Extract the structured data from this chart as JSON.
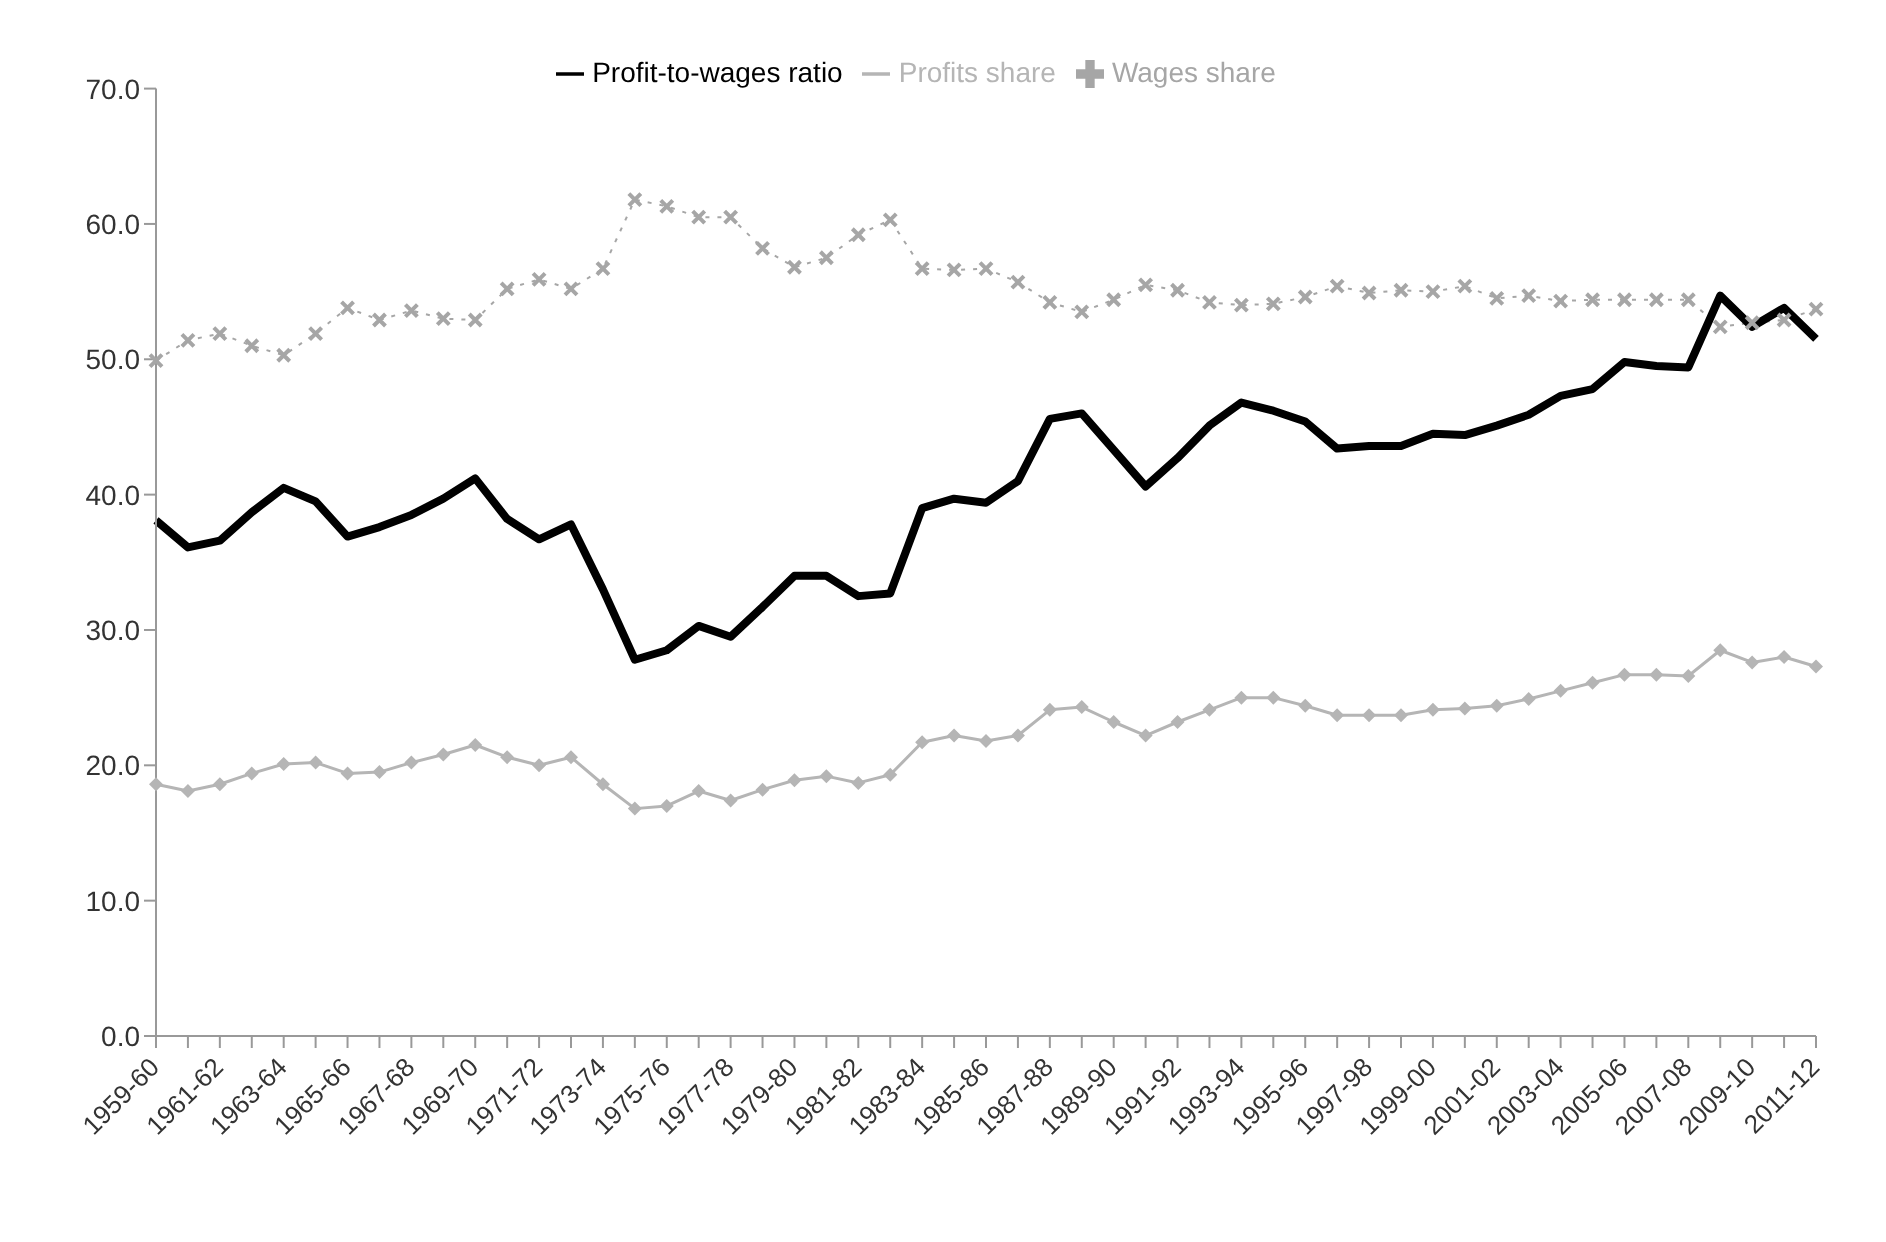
{
  "chart_data": {
    "type": "line",
    "categories": [
      "1959-60",
      null,
      "1961-62",
      null,
      "1963-64",
      null,
      "1965-66",
      null,
      "1967-68",
      null,
      "1969-70",
      null,
      "1971-72",
      null,
      "1973-74",
      null,
      "1975-76",
      null,
      "1977-78",
      null,
      "1979-80",
      null,
      "1981-82",
      null,
      "1983-84",
      null,
      "1985-86",
      null,
      "1987-88",
      null,
      "1989-90",
      null,
      "1991-92",
      null,
      "1993-94",
      null,
      "1995-96",
      null,
      "1997-98",
      null,
      "1999-00",
      null,
      "2001-02",
      null,
      "2003-04",
      null,
      "2005-06",
      null,
      "2007-08",
      null,
      "2009-10",
      null,
      "2011-12"
    ],
    "series": [
      {
        "name": "Wages share",
        "color": "#a6a6a6",
        "marker": "cross",
        "line_style": "dotted",
        "values": [
          49.9,
          51.4,
          51.9,
          51.0,
          50.3,
          51.9,
          53.8,
          52.9,
          53.6,
          53.0,
          52.9,
          55.2,
          55.9,
          55.2,
          56.7,
          61.8,
          61.3,
          60.5,
          60.5,
          58.2,
          56.8,
          57.5,
          59.2,
          60.3,
          56.7,
          56.6,
          56.7,
          55.7,
          54.2,
          53.5,
          54.4,
          55.5,
          55.1,
          54.2,
          54.0,
          54.1,
          54.6,
          55.4,
          54.9,
          55.1,
          55.0,
          55.4,
          54.5,
          54.7,
          54.3,
          54.4,
          54.4,
          54.4,
          54.4,
          52.4,
          52.7,
          52.9,
          53.7
        ]
      },
      {
        "name": "Profit-to-wages ratio",
        "color": "#000000",
        "marker": "none",
        "line_style": "solid",
        "values": [
          38.1,
          36.1,
          36.6,
          38.7,
          40.5,
          39.5,
          36.9,
          37.6,
          38.5,
          39.7,
          41.2,
          38.2,
          36.7,
          37.8,
          33.0,
          27.8,
          28.5,
          30.3,
          29.5,
          31.7,
          34.0,
          34.0,
          32.5,
          32.7,
          39.0,
          39.7,
          39.4,
          41.0,
          45.6,
          46.0,
          43.3,
          40.6,
          42.7,
          45.1,
          46.8,
          46.2,
          45.4,
          43.4,
          43.6,
          43.6,
          44.5,
          44.4,
          45.1,
          45.9,
          47.3,
          47.8,
          49.8,
          49.5,
          49.4,
          54.7,
          52.4,
          53.8,
          51.5
        ]
      },
      {
        "name": "Profits share",
        "color": "#b5b5b5",
        "marker": "diamond",
        "line_style": "solid",
        "values": [
          18.6,
          18.1,
          18.6,
          19.4,
          20.1,
          20.2,
          19.4,
          19.5,
          20.2,
          20.8,
          21.5,
          20.6,
          20.0,
          20.6,
          18.6,
          16.8,
          17.0,
          18.1,
          17.4,
          18.2,
          18.9,
          19.2,
          18.7,
          19.3,
          21.7,
          22.2,
          21.8,
          22.2,
          24.1,
          24.3,
          23.2,
          22.2,
          23.2,
          24.1,
          25.0,
          25.0,
          24.4,
          23.7,
          23.7,
          23.7,
          24.1,
          24.2,
          24.4,
          24.9,
          25.5,
          26.1,
          26.7,
          26.7,
          26.6,
          28.5,
          27.6,
          28.0,
          27.3
        ]
      }
    ],
    "ylim": [
      0,
      70
    ],
    "yticks": [
      {
        "value": 0,
        "label": "0.0"
      },
      {
        "value": 10,
        "label": "10.0"
      },
      {
        "value": 20,
        "label": "20.0"
      },
      {
        "value": 30,
        "label": "30.0"
      },
      {
        "value": 40,
        "label": "40.0"
      },
      {
        "value": 50,
        "label": "50.0"
      },
      {
        "value": 60,
        "label": "60.0"
      },
      {
        "value": 70,
        "label": "70.0"
      }
    ],
    "grid": false,
    "legend": "top"
  }
}
